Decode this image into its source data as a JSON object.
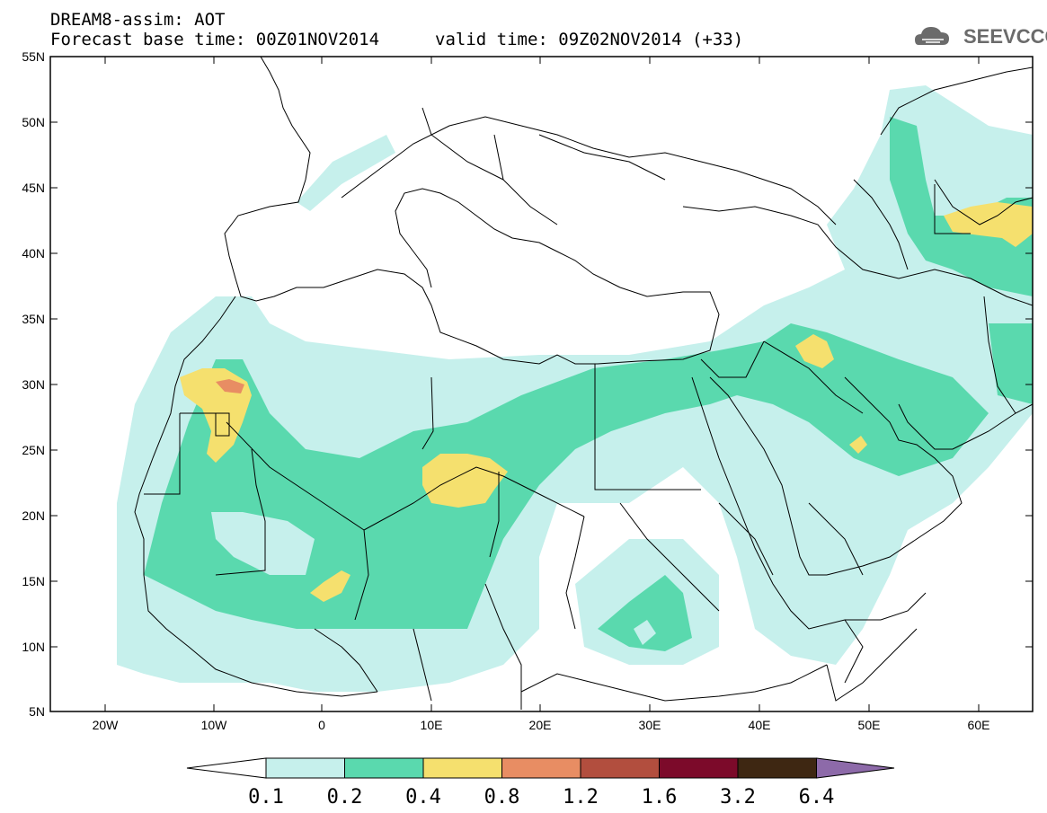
{
  "header": {
    "title_line1": "DREAM8-assim: AOT",
    "title_line2": "Forecast base time: 00Z01NOV2014",
    "valid_time": "valid time: 09Z02NOV2014 (+33)",
    "logo_text": "SEEVCCC"
  },
  "map": {
    "lon_range": [
      -25,
      65
    ],
    "lat_range": [
      5,
      55
    ],
    "y_labels": [
      "55N",
      "50N",
      "45N",
      "40N",
      "35N",
      "30N",
      "25N",
      "20N",
      "15N",
      "10N",
      "5N"
    ],
    "x_labels": [
      "20W",
      "10W",
      "0",
      "10E",
      "20E",
      "30E",
      "40E",
      "50E",
      "60E"
    ]
  },
  "legend": {
    "labels": [
      "0.1",
      "0.2",
      "0.4",
      "0.8",
      "1.2",
      "1.6",
      "3.2",
      "6.4"
    ],
    "colors": [
      "#ffffff",
      "#c6f0ec",
      "#5ad9ae",
      "#f5e06e",
      "#e88d63",
      "#b24e3e",
      "#7c0a2a",
      "#3e2712",
      "#8d6aa9"
    ]
  }
}
